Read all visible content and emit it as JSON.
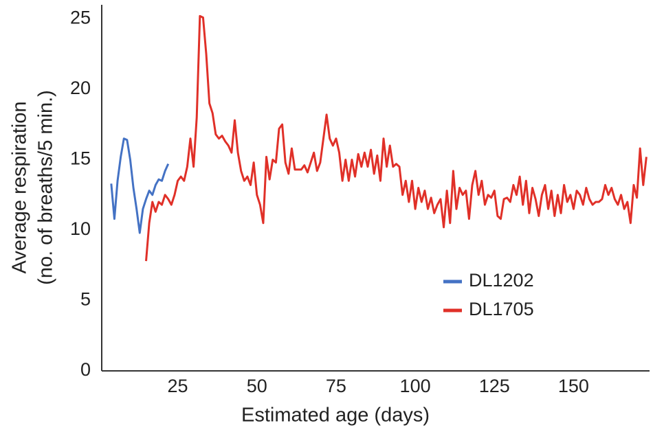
{
  "chart_data": {
    "type": "line",
    "xlabel": "Estimated age (days)",
    "ylabel": [
      "Average respiration",
      "(no. of breaths/5 min.)"
    ],
    "xlim": [
      1,
      174
    ],
    "xticks": [
      25,
      50,
      75,
      100,
      125,
      150
    ],
    "ylim": [
      0,
      26
    ],
    "yticks": [
      0,
      5,
      10,
      15,
      20,
      25
    ],
    "series": [
      {
        "name": "DL1202",
        "color": "#4472c4",
        "x": [
          4,
          5,
          6,
          7,
          8,
          9,
          10,
          11,
          12,
          13,
          14,
          15,
          16,
          17,
          18,
          19,
          20,
          21,
          22
        ],
        "values": [
          13.3,
          10.8,
          13.5,
          15.2,
          16.5,
          16.4,
          15,
          13,
          11.5,
          9.8,
          11.5,
          12.2,
          12.8,
          12.5,
          13.2,
          13.6,
          13.5,
          14.2,
          14.7
        ]
      },
      {
        "name": "DL1705",
        "color": "#e03028",
        "x": [
          15,
          16,
          17,
          18,
          19,
          20,
          21,
          22,
          23,
          24,
          25,
          26,
          27,
          28,
          29,
          30,
          31,
          32,
          33,
          34,
          35,
          36,
          37,
          38,
          39,
          40,
          41,
          42,
          43,
          44,
          45,
          46,
          47,
          48,
          49,
          50,
          51,
          52,
          53,
          54,
          55,
          56,
          57,
          58,
          59,
          60,
          61,
          62,
          63,
          64,
          65,
          66,
          67,
          68,
          69,
          70,
          71,
          72,
          73,
          74,
          75,
          76,
          77,
          78,
          79,
          80,
          81,
          82,
          83,
          84,
          85,
          86,
          87,
          88,
          89,
          90,
          91,
          92,
          93,
          94,
          95,
          96,
          97,
          98,
          99,
          100,
          101,
          102,
          103,
          104,
          105,
          106,
          107,
          108,
          109,
          110,
          111,
          112,
          113,
          114,
          115,
          116,
          117,
          118,
          119,
          120,
          121,
          122,
          123,
          124,
          125,
          126,
          127,
          128,
          129,
          130,
          131,
          132,
          133,
          134,
          135,
          136,
          137,
          138,
          139,
          140,
          141,
          142,
          143,
          144,
          145,
          146,
          147,
          148,
          149,
          150,
          151,
          152,
          153,
          154,
          155,
          156,
          157,
          158,
          159,
          160,
          161,
          162,
          163,
          164,
          165,
          166,
          167,
          168,
          169,
          170,
          171,
          172,
          173
        ],
        "values": [
          7.8,
          10.5,
          12,
          11.3,
          12,
          11.8,
          12.5,
          12.2,
          11.8,
          12.5,
          13.5,
          13.8,
          13.5,
          14.5,
          16.5,
          14.5,
          18,
          25.2,
          25.1,
          22.5,
          19,
          18.3,
          16.8,
          16.5,
          16.7,
          16.3,
          16,
          15.5,
          17.8,
          15.5,
          14.2,
          13.5,
          13.8,
          13.2,
          14.8,
          12.5,
          11.8,
          10.5,
          15.2,
          13.6,
          15,
          14.8,
          17.2,
          17.5,
          14.8,
          14,
          15.8,
          14.3,
          14.3,
          14.3,
          14.6,
          14.1,
          14.8,
          15.5,
          14.2,
          14.8,
          16.5,
          18.2,
          16.5,
          16,
          16.5,
          15.5,
          13.5,
          15,
          13.5,
          15,
          13.8,
          15.4,
          14.5,
          15.5,
          14.5,
          15.7,
          14,
          15.3,
          13.5,
          16.5,
          14.5,
          16,
          14.5,
          14.7,
          14.5,
          12.5,
          13.5,
          12,
          13.5,
          11.5,
          13,
          12,
          12.8,
          11.5,
          12.3,
          11.2,
          11.8,
          12.2,
          10.2,
          12.8,
          10.5,
          14.2,
          11.5,
          13,
          12.5,
          12.8,
          10.8,
          13.2,
          14.2,
          12.5,
          13.5,
          11.8,
          12.5,
          12.3,
          12.8,
          11,
          10.8,
          12.2,
          12.3,
          12,
          13.2,
          12.5,
          13.8,
          11.8,
          13.5,
          11.2,
          13,
          12.2,
          11,
          12.5,
          13.2,
          11.5,
          12.8,
          11,
          12.5,
          11.2,
          13.2,
          12,
          12.5,
          11.5,
          12.8,
          12.5,
          11.8,
          13,
          12.2,
          11.8,
          12,
          12,
          12.2,
          13.2,
          12.5,
          13,
          12.2,
          11.8,
          12.5,
          11.5,
          12,
          10.5,
          13.2,
          12.3,
          15.8,
          13.2,
          15.2
        ]
      }
    ]
  }
}
